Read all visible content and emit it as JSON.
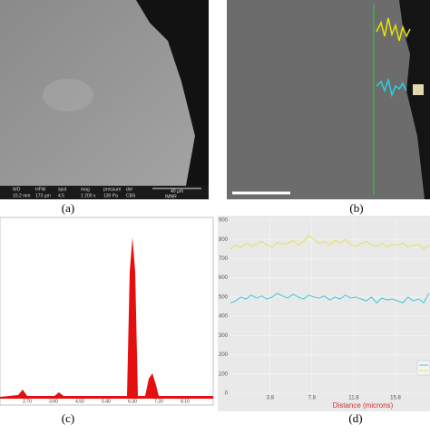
{
  "panel_a": {
    "label": "(a)",
    "info_headers": [
      "WD",
      "HFW",
      "spot",
      "mag",
      "pressure",
      "det"
    ],
    "info_values": [
      "10.2 mm",
      "173 µm",
      "4.5",
      "1 200 x",
      "130 Pa",
      "CBS"
    ],
    "scale_text": "40 µm",
    "institution": "IMNR"
  },
  "panel_b": {
    "label": "(b)"
  },
  "panel_c": {
    "label": "(c)",
    "xticks": [
      "2.70",
      "3.60",
      "4.50",
      "5.40",
      "6.30",
      "7.20",
      "8.10"
    ]
  },
  "panel_d": {
    "label": "(d)",
    "xlabel": "Distance (microns)",
    "xlim": [
      0,
      19.1
    ],
    "xticks": [
      3.8,
      7.8,
      11.8,
      15.8
    ],
    "ylim": [
      0,
      900
    ],
    "yticks": [
      0,
      100,
      200,
      300,
      400,
      500,
      600,
      700,
      800,
      900
    ],
    "x": [
      0,
      0.5,
      1,
      1.5,
      2,
      2.5,
      3,
      3.5,
      4,
      4.5,
      5,
      5.5,
      6,
      6.5,
      7,
      7.5,
      8,
      8.5,
      9,
      9.5,
      10,
      10.5,
      11,
      11.5,
      12,
      12.5,
      13,
      13.5,
      14,
      14.5,
      15,
      15.5,
      16,
      16.5,
      17,
      17.5,
      18,
      18.5,
      19
    ],
    "series": [
      {
        "color": "#e3e35a",
        "values": [
          750,
          770,
          760,
          780,
          765,
          775,
          790,
          770,
          760,
          785,
          775,
          780,
          795,
          770,
          790,
          820,
          800,
          780,
          790,
          770,
          795,
          780,
          800,
          775,
          760,
          780,
          790,
          770,
          765,
          780,
          760,
          775,
          770,
          780,
          760,
          770,
          775,
          750,
          770
        ]
      },
      {
        "color": "#3cc8d8",
        "values": [
          470,
          480,
          500,
          490,
          510,
          495,
          505,
          490,
          500,
          520,
          505,
          495,
          515,
          500,
          490,
          510,
          500,
          495,
          505,
          485,
          500,
          490,
          510,
          495,
          500,
          490,
          480,
          500,
          470,
          495,
          485,
          490,
          480,
          470,
          500,
          480,
          490,
          470,
          520
        ]
      }
    ]
  }
}
